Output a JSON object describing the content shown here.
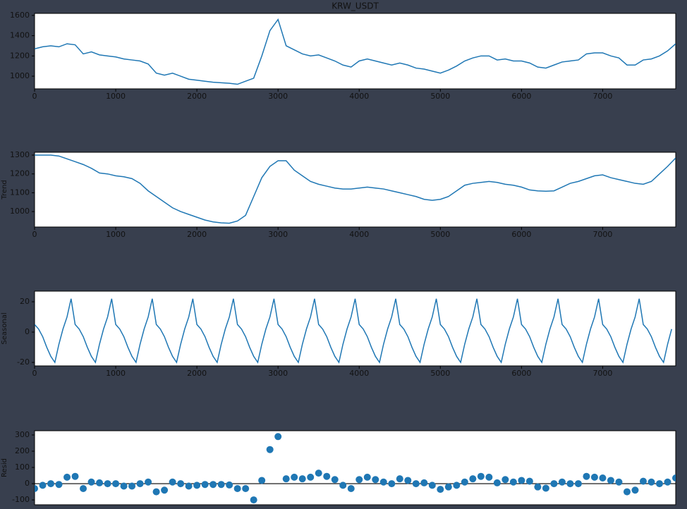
{
  "chart_data": [
    {
      "type": "line",
      "title": "KRW_USDT",
      "color": "#1f77b4",
      "xlim": [
        0,
        7900
      ],
      "ylim": [
        875,
        1620
      ],
      "xticks": [
        0,
        1000,
        2000,
        3000,
        4000,
        5000,
        6000,
        7000
      ],
      "yticks": [
        1000,
        1200,
        1400,
        1600
      ],
      "x": [
        0,
        100,
        200,
        300,
        400,
        500,
        600,
        700,
        800,
        900,
        1000,
        1100,
        1200,
        1300,
        1400,
        1500,
        1600,
        1700,
        1800,
        1900,
        2000,
        2100,
        2200,
        2300,
        2400,
        2500,
        2600,
        2700,
        2800,
        2900,
        3000,
        3100,
        3200,
        3300,
        3400,
        3500,
        3600,
        3700,
        3800,
        3900,
        4000,
        4100,
        4200,
        4300,
        4400,
        4500,
        4600,
        4700,
        4800,
        4900,
        5000,
        5100,
        5200,
        5300,
        5400,
        5500,
        5600,
        5700,
        5800,
        5900,
        6000,
        6100,
        6200,
        6300,
        6400,
        6500,
        6600,
        6700,
        6800,
        6900,
        7000,
        7100,
        7200,
        7300,
        7400,
        7500,
        7600,
        7700,
        7800,
        7900
      ],
      "values": [
        1270,
        1290,
        1300,
        1290,
        1320,
        1310,
        1220,
        1240,
        1210,
        1200,
        1190,
        1170,
        1160,
        1150,
        1120,
        1030,
        1010,
        1030,
        1000,
        970,
        960,
        950,
        940,
        935,
        930,
        920,
        950,
        980,
        1200,
        1450,
        1560,
        1300,
        1260,
        1220,
        1200,
        1210,
        1180,
        1150,
        1110,
        1090,
        1150,
        1170,
        1150,
        1130,
        1110,
        1130,
        1110,
        1080,
        1070,
        1050,
        1030,
        1060,
        1100,
        1150,
        1180,
        1200,
        1200,
        1160,
        1170,
        1150,
        1150,
        1130,
        1090,
        1080,
        1110,
        1140,
        1150,
        1160,
        1220,
        1230,
        1230,
        1200,
        1180,
        1110,
        1110,
        1160,
        1170,
        1200,
        1250,
        1320
      ]
    },
    {
      "type": "line",
      "ylabel": "Trend",
      "color": "#1f77b4",
      "xlim": [
        0,
        7900
      ],
      "ylim": [
        918,
        1315
      ],
      "xticks": [
        0,
        1000,
        2000,
        3000,
        4000,
        5000,
        6000,
        7000
      ],
      "yticks": [
        1000,
        1100,
        1200,
        1300
      ],
      "x": [
        0,
        100,
        200,
        300,
        400,
        500,
        600,
        700,
        800,
        900,
        1000,
        1100,
        1200,
        1300,
        1400,
        1500,
        1600,
        1700,
        1800,
        1900,
        2000,
        2100,
        2200,
        2300,
        2400,
        2500,
        2600,
        2700,
        2800,
        2900,
        3000,
        3100,
        3200,
        3300,
        3400,
        3500,
        3600,
        3700,
        3800,
        3900,
        4000,
        4100,
        4200,
        4300,
        4400,
        4500,
        4600,
        4700,
        4800,
        4900,
        5000,
        5100,
        5200,
        5300,
        5400,
        5500,
        5600,
        5700,
        5800,
        5900,
        6000,
        6100,
        6200,
        6300,
        6400,
        6500,
        6600,
        6700,
        6800,
        6900,
        7000,
        7100,
        7200,
        7300,
        7400,
        7500,
        7600,
        7700,
        7800,
        7900
      ],
      "values": [
        1300,
        1300,
        1300,
        1295,
        1280,
        1265,
        1250,
        1230,
        1205,
        1200,
        1190,
        1185,
        1175,
        1150,
        1110,
        1080,
        1050,
        1020,
        1000,
        985,
        970,
        955,
        945,
        940,
        938,
        950,
        980,
        1080,
        1180,
        1240,
        1270,
        1270,
        1220,
        1190,
        1160,
        1145,
        1135,
        1125,
        1120,
        1120,
        1125,
        1130,
        1125,
        1120,
        1110,
        1100,
        1090,
        1080,
        1065,
        1060,
        1065,
        1080,
        1110,
        1140,
        1150,
        1155,
        1160,
        1155,
        1145,
        1140,
        1130,
        1115,
        1110,
        1108,
        1110,
        1130,
        1150,
        1160,
        1175,
        1190,
        1195,
        1180,
        1170,
        1160,
        1150,
        1145,
        1160,
        1200,
        1240,
        1285
      ]
    },
    {
      "type": "line",
      "ylabel": "Seasonal",
      "color": "#1f77b4",
      "xlim": [
        0,
        7900
      ],
      "ylim": [
        -22.3,
        27
      ],
      "xticks": [
        0,
        1000,
        2000,
        3000,
        4000,
        5000,
        6000,
        7000
      ],
      "yticks": [
        -20,
        0,
        20
      ],
      "x": [
        0,
        50,
        100,
        150,
        200,
        250,
        300,
        350,
        400,
        450,
        500,
        550,
        600,
        650,
        700,
        750,
        800,
        850,
        900,
        950,
        1000,
        1050,
        1100,
        1150,
        1200,
        1250,
        1300,
        1350,
        1400,
        1450,
        1500,
        1550,
        1600,
        1650,
        1700,
        1750,
        1800,
        1850,
        1900,
        1950,
        2000,
        2050,
        2100,
        2150,
        2200,
        2250,
        2300,
        2350,
        2400,
        2450,
        2500,
        2550,
        2600,
        2650,
        2700,
        2750,
        2800,
        2850,
        2900,
        2950,
        3000,
        3050,
        3100,
        3150,
        3200,
        3250,
        3300,
        3350,
        3400,
        3450,
        3500,
        3550,
        3600,
        3650,
        3700,
        3750,
        3800,
        3850,
        3900,
        3950,
        4000,
        4050,
        4100,
        4150,
        4200,
        4250,
        4300,
        4350,
        4400,
        4450,
        4500,
        4550,
        4600,
        4650,
        4700,
        4750,
        4800,
        4850,
        4900,
        4950,
        5000,
        5050,
        5100,
        5150,
        5200,
        5250,
        5300,
        5350,
        5400,
        5450,
        5500,
        5550,
        5600,
        5650,
        5700,
        5750,
        5800,
        5850,
        5900,
        5950,
        6000,
        6050,
        6100,
        6150,
        6200,
        6250,
        6300,
        6350,
        6400,
        6450,
        6500,
        6550,
        6600,
        6650,
        6700,
        6750,
        6800,
        6850,
        6900,
        6950,
        7000,
        7050,
        7100,
        7150,
        7200,
        7250,
        7300,
        7350,
        7400,
        7450,
        7500,
        7550,
        7600,
        7650,
        7700,
        7750,
        7800,
        7850
      ],
      "values": [
        5,
        2,
        -3,
        -10,
        -16,
        -20,
        -8,
        2,
        10,
        22,
        5,
        2,
        -3,
        -10,
        -16,
        -20,
        -8,
        2,
        10,
        22,
        5,
        2,
        -3,
        -10,
        -16,
        -20,
        -8,
        2,
        10,
        22,
        5,
        2,
        -3,
        -10,
        -16,
        -20,
        -8,
        2,
        10,
        22,
        5,
        2,
        -3,
        -10,
        -16,
        -20,
        -8,
        2,
        10,
        22,
        5,
        2,
        -3,
        -10,
        -16,
        -20,
        -8,
        2,
        10,
        22,
        5,
        2,
        -3,
        -10,
        -16,
        -20,
        -8,
        2,
        10,
        22,
        5,
        2,
        -3,
        -10,
        -16,
        -20,
        -8,
        2,
        10,
        22,
        5,
        2,
        -3,
        -10,
        -16,
        -20,
        -8,
        2,
        10,
        22,
        5,
        2,
        -3,
        -10,
        -16,
        -20,
        -8,
        2,
        10,
        22,
        5,
        2,
        -3,
        -10,
        -16,
        -20,
        -8,
        2,
        10,
        22,
        5,
        2,
        -3,
        -10,
        -16,
        -20,
        -8,
        2,
        10,
        22,
        5,
        2,
        -3,
        -10,
        -16,
        -20,
        -8,
        2,
        10,
        22,
        5,
        2,
        -3,
        -10,
        -16,
        -20,
        -8,
        2,
        10,
        22,
        5,
        2,
        -3,
        -10,
        -16,
        -20,
        -8,
        2,
        10,
        22,
        5,
        2,
        -3,
        -10,
        -16,
        -20,
        -8,
        2
      ]
    },
    {
      "type": "scatter",
      "ylabel": "Resid",
      "color": "#1f77b4",
      "xlim": [
        0,
        7900
      ],
      "ylim": [
        -130,
        326
      ],
      "yticks": [
        -100,
        0,
        100,
        200,
        300
      ],
      "x": [
        0,
        100,
        200,
        300,
        400,
        500,
        600,
        700,
        800,
        900,
        1000,
        1100,
        1200,
        1300,
        1400,
        1500,
        1600,
        1700,
        1800,
        1900,
        2000,
        2100,
        2200,
        2300,
        2400,
        2500,
        2600,
        2700,
        2800,
        2900,
        3000,
        3100,
        3200,
        3300,
        3400,
        3500,
        3600,
        3700,
        3800,
        3900,
        4000,
        4100,
        4200,
        4300,
        4400,
        4500,
        4600,
        4700,
        4800,
        4900,
        5000,
        5100,
        5200,
        5300,
        5400,
        5500,
        5600,
        5700,
        5800,
        5900,
        6000,
        6100,
        6200,
        6300,
        6400,
        6500,
        6600,
        6700,
        6800,
        6900,
        7000,
        7100,
        7200,
        7300,
        7400,
        7500,
        7600,
        7700,
        7800,
        7900
      ],
      "values": [
        -30,
        -10,
        0,
        -5,
        40,
        45,
        -30,
        10,
        5,
        0,
        0,
        -15,
        -15,
        0,
        10,
        -50,
        -40,
        10,
        0,
        -15,
        -10,
        -5,
        -5,
        -5,
        -8,
        -30,
        -30,
        -100,
        20,
        210,
        290,
        30,
        40,
        30,
        40,
        65,
        45,
        25,
        -10,
        -30,
        25,
        40,
        25,
        10,
        0,
        30,
        20,
        0,
        5,
        -10,
        -35,
        -20,
        -10,
        10,
        30,
        45,
        40,
        5,
        25,
        10,
        20,
        15,
        -20,
        -28,
        0,
        10,
        0,
        0,
        45,
        40,
        35,
        20,
        10,
        -50,
        -40,
        15,
        10,
        0,
        10,
        35
      ]
    }
  ]
}
